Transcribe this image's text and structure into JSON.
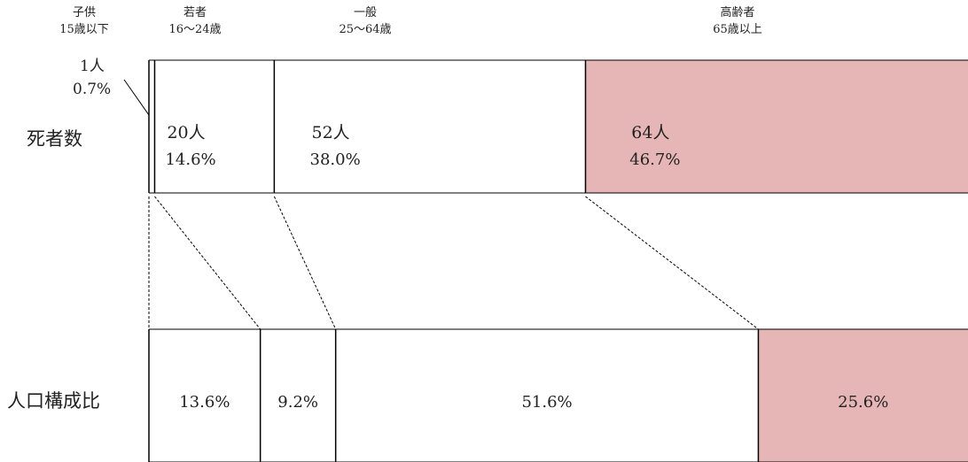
{
  "chart_data": {
    "type": "bar",
    "subtype": "stacked-100-percent-horizontal",
    "categories": [
      {
        "name": "子供",
        "range": "15歳以下"
      },
      {
        "name": "若者",
        "range": "16～24歳"
      },
      {
        "name": "一般",
        "range": "25～64歳"
      },
      {
        "name": "高齢者",
        "range": "65歳以上"
      }
    ],
    "rows": [
      {
        "label": "死者数",
        "values": [
          0.7,
          14.6,
          38.0,
          46.7
        ],
        "counts": [
          "1人",
          "20人",
          "52人",
          "64人"
        ],
        "percent_labels": [
          "0.7%",
          "14.6%",
          "38.0%",
          "46.7%"
        ]
      },
      {
        "label": "人口構成比",
        "values": [
          13.6,
          9.2,
          51.6,
          25.6
        ],
        "percent_labels": [
          "13.6%",
          "9.2%",
          "51.6%",
          "25.6%"
        ]
      }
    ],
    "highlight_category": "高齢者",
    "colors": {
      "highlight": "#e6b6b6",
      "normal": "#ffffff",
      "border": "#000000"
    },
    "connector_lines": "dashed"
  }
}
